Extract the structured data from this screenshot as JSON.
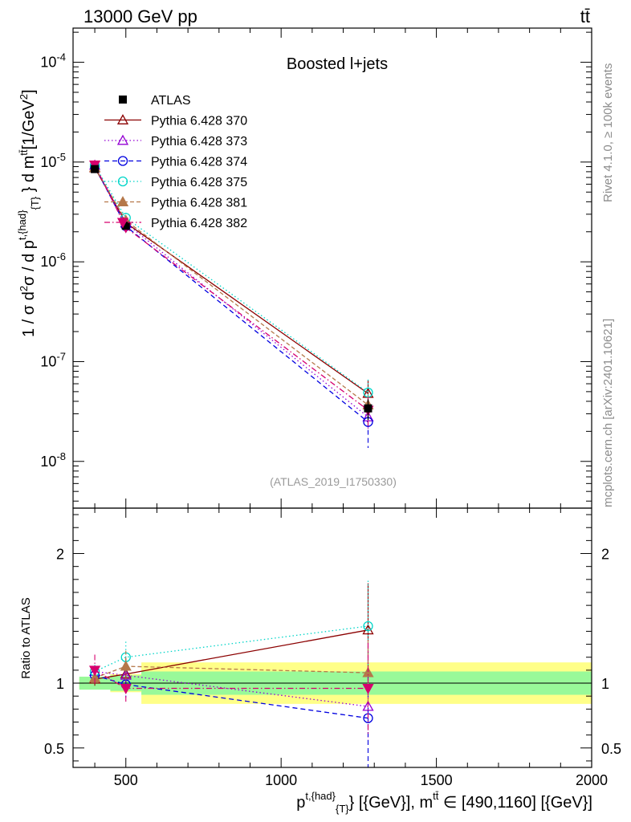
{
  "header": {
    "energy": "13000 GeV pp",
    "process": "tt̄"
  },
  "side_labels": {
    "rivet": "Rivet 4.1.0, ≥ 100k events",
    "mcplots": "mcplots.cern.ch [arXiv:2401.10621]"
  },
  "chart_data": {
    "type": "line",
    "title": "Boosted l+jets",
    "analysis_id": "(ATLAS_2019_I1750330)",
    "ylabel": "1 / σ d²σ / d p^{t,{had}}_{T} d m^{tt̄} [1/GeV²]",
    "xlabel": "p^{t,{had}}_{T} [{GeV}], m^{tt̄} ∈ [490,1160] [{GeV}]",
    "ratio_ylabel": "Ratio to ATLAS",
    "xlim": [
      330,
      2000
    ],
    "ylim_log": [
      3.4e-09,
      0.00022
    ],
    "ratio_ylim": [
      0.35,
      2.35
    ],
    "x_ticks": [
      "500",
      "1000",
      "1500",
      "2000"
    ],
    "y_ticks": [
      "10^{-8}",
      "10^{-7}",
      "10^{-6}",
      "10^{-5}",
      "10^{-4}"
    ],
    "ratio_ticks": [
      "0.5",
      "1",
      "2"
    ],
    "x": [
      400,
      500,
      1280
    ],
    "data": {
      "name": "ATLAS",
      "values": [
        8.5e-06,
        2.3e-06,
        3.4e-08
      ],
      "errors": [
        5e-07,
        1.5e-07,
        8e-09
      ],
      "band_inner": [
        [
          350,
          450,
          0.05
        ],
        [
          450,
          550,
          0.06
        ],
        [
          550,
          2000,
          0.09
        ]
      ],
      "band_outer": [
        [
          350,
          450,
          0.04
        ],
        [
          450,
          550,
          0.07
        ],
        [
          550,
          2000,
          0.16
        ]
      ]
    },
    "series": [
      {
        "name": "Pythia 6.428 370",
        "color": "#8b0000",
        "dash": "",
        "marker": "triangle-open",
        "ratio": [
          1.03,
          1.07,
          1.41
        ],
        "ratio_err": [
          0.05,
          0.12,
          0.36
        ]
      },
      {
        "name": "Pythia 6.428 373",
        "color": "#9400d3",
        "dash": "1.5,3",
        "marker": "triangle-open",
        "ratio": [
          1.09,
          1.06,
          0.82
        ],
        "ratio_err": [
          0.05,
          0.1,
          0.3
        ]
      },
      {
        "name": "Pythia 6.428 374",
        "color": "#0000e0",
        "dash": "6,4",
        "marker": "circle-open",
        "ratio": [
          1.06,
          0.99,
          0.73
        ],
        "ratio_err": [
          0.05,
          0.1,
          0.45
        ]
      },
      {
        "name": "Pythia 6.428 375",
        "color": "#00d5c8",
        "dash": "1.5,3",
        "marker": "circle-open",
        "ratio": [
          1.09,
          1.2,
          1.44
        ],
        "ratio_err": [
          0.05,
          0.12,
          0.35
        ]
      },
      {
        "name": "Pythia 6.428 381",
        "color": "#b5784a",
        "dash": "5,3",
        "marker": "triangle-filled",
        "ratio": [
          1.04,
          1.13,
          1.08
        ],
        "ratio_err": [
          0.05,
          0.12,
          0.25
        ]
      },
      {
        "name": "Pythia 6.428 382",
        "color": "#d6006e",
        "dash": "7,3,1.5,3",
        "marker": "triangle-down-filled",
        "ratio": [
          1.1,
          0.96,
          0.96
        ],
        "ratio_err": [
          0.12,
          0.12,
          0.35
        ]
      }
    ]
  }
}
